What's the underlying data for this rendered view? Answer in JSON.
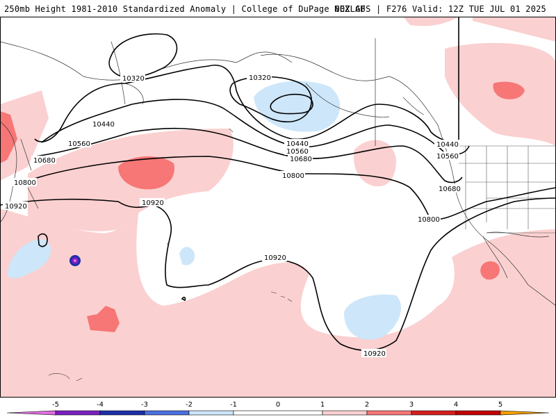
{
  "header": {
    "title_left": "250mb Height 1981-2010 Standardized Anomaly | College of DuPage NEXLAB",
    "title_right": "00Z GFS | F276 Valid: 12Z TUE JUL 01 2025"
  },
  "colors": {
    "neg5": "#e070e0",
    "neg4": "#7a1fc0",
    "neg3": "#1c2fa8",
    "neg2": "#4b6fe0",
    "neg1": "#cde6fa",
    "zero": "#ffffff",
    "pos1": "#fbd0d0",
    "pos2": "#f77676",
    "pos3": "#d61e1e",
    "pos4": "#c20000",
    "pos5": "#f5a000",
    "contour": "#000000",
    "coast": "#333333"
  },
  "contour_labels": [
    "10320",
    "10320",
    "10440",
    "10440",
    "10440",
    "10560",
    "10560",
    "10560",
    "10680",
    "10680",
    "10680",
    "10800",
    "10800",
    "10800",
    "10920",
    "10920",
    "10920",
    "10920"
  ],
  "colorbar": {
    "ticks": [
      "-5",
      "-4",
      "-3",
      "-2",
      "-1",
      "0",
      "1",
      "2",
      "3",
      "4",
      "5"
    ]
  }
}
